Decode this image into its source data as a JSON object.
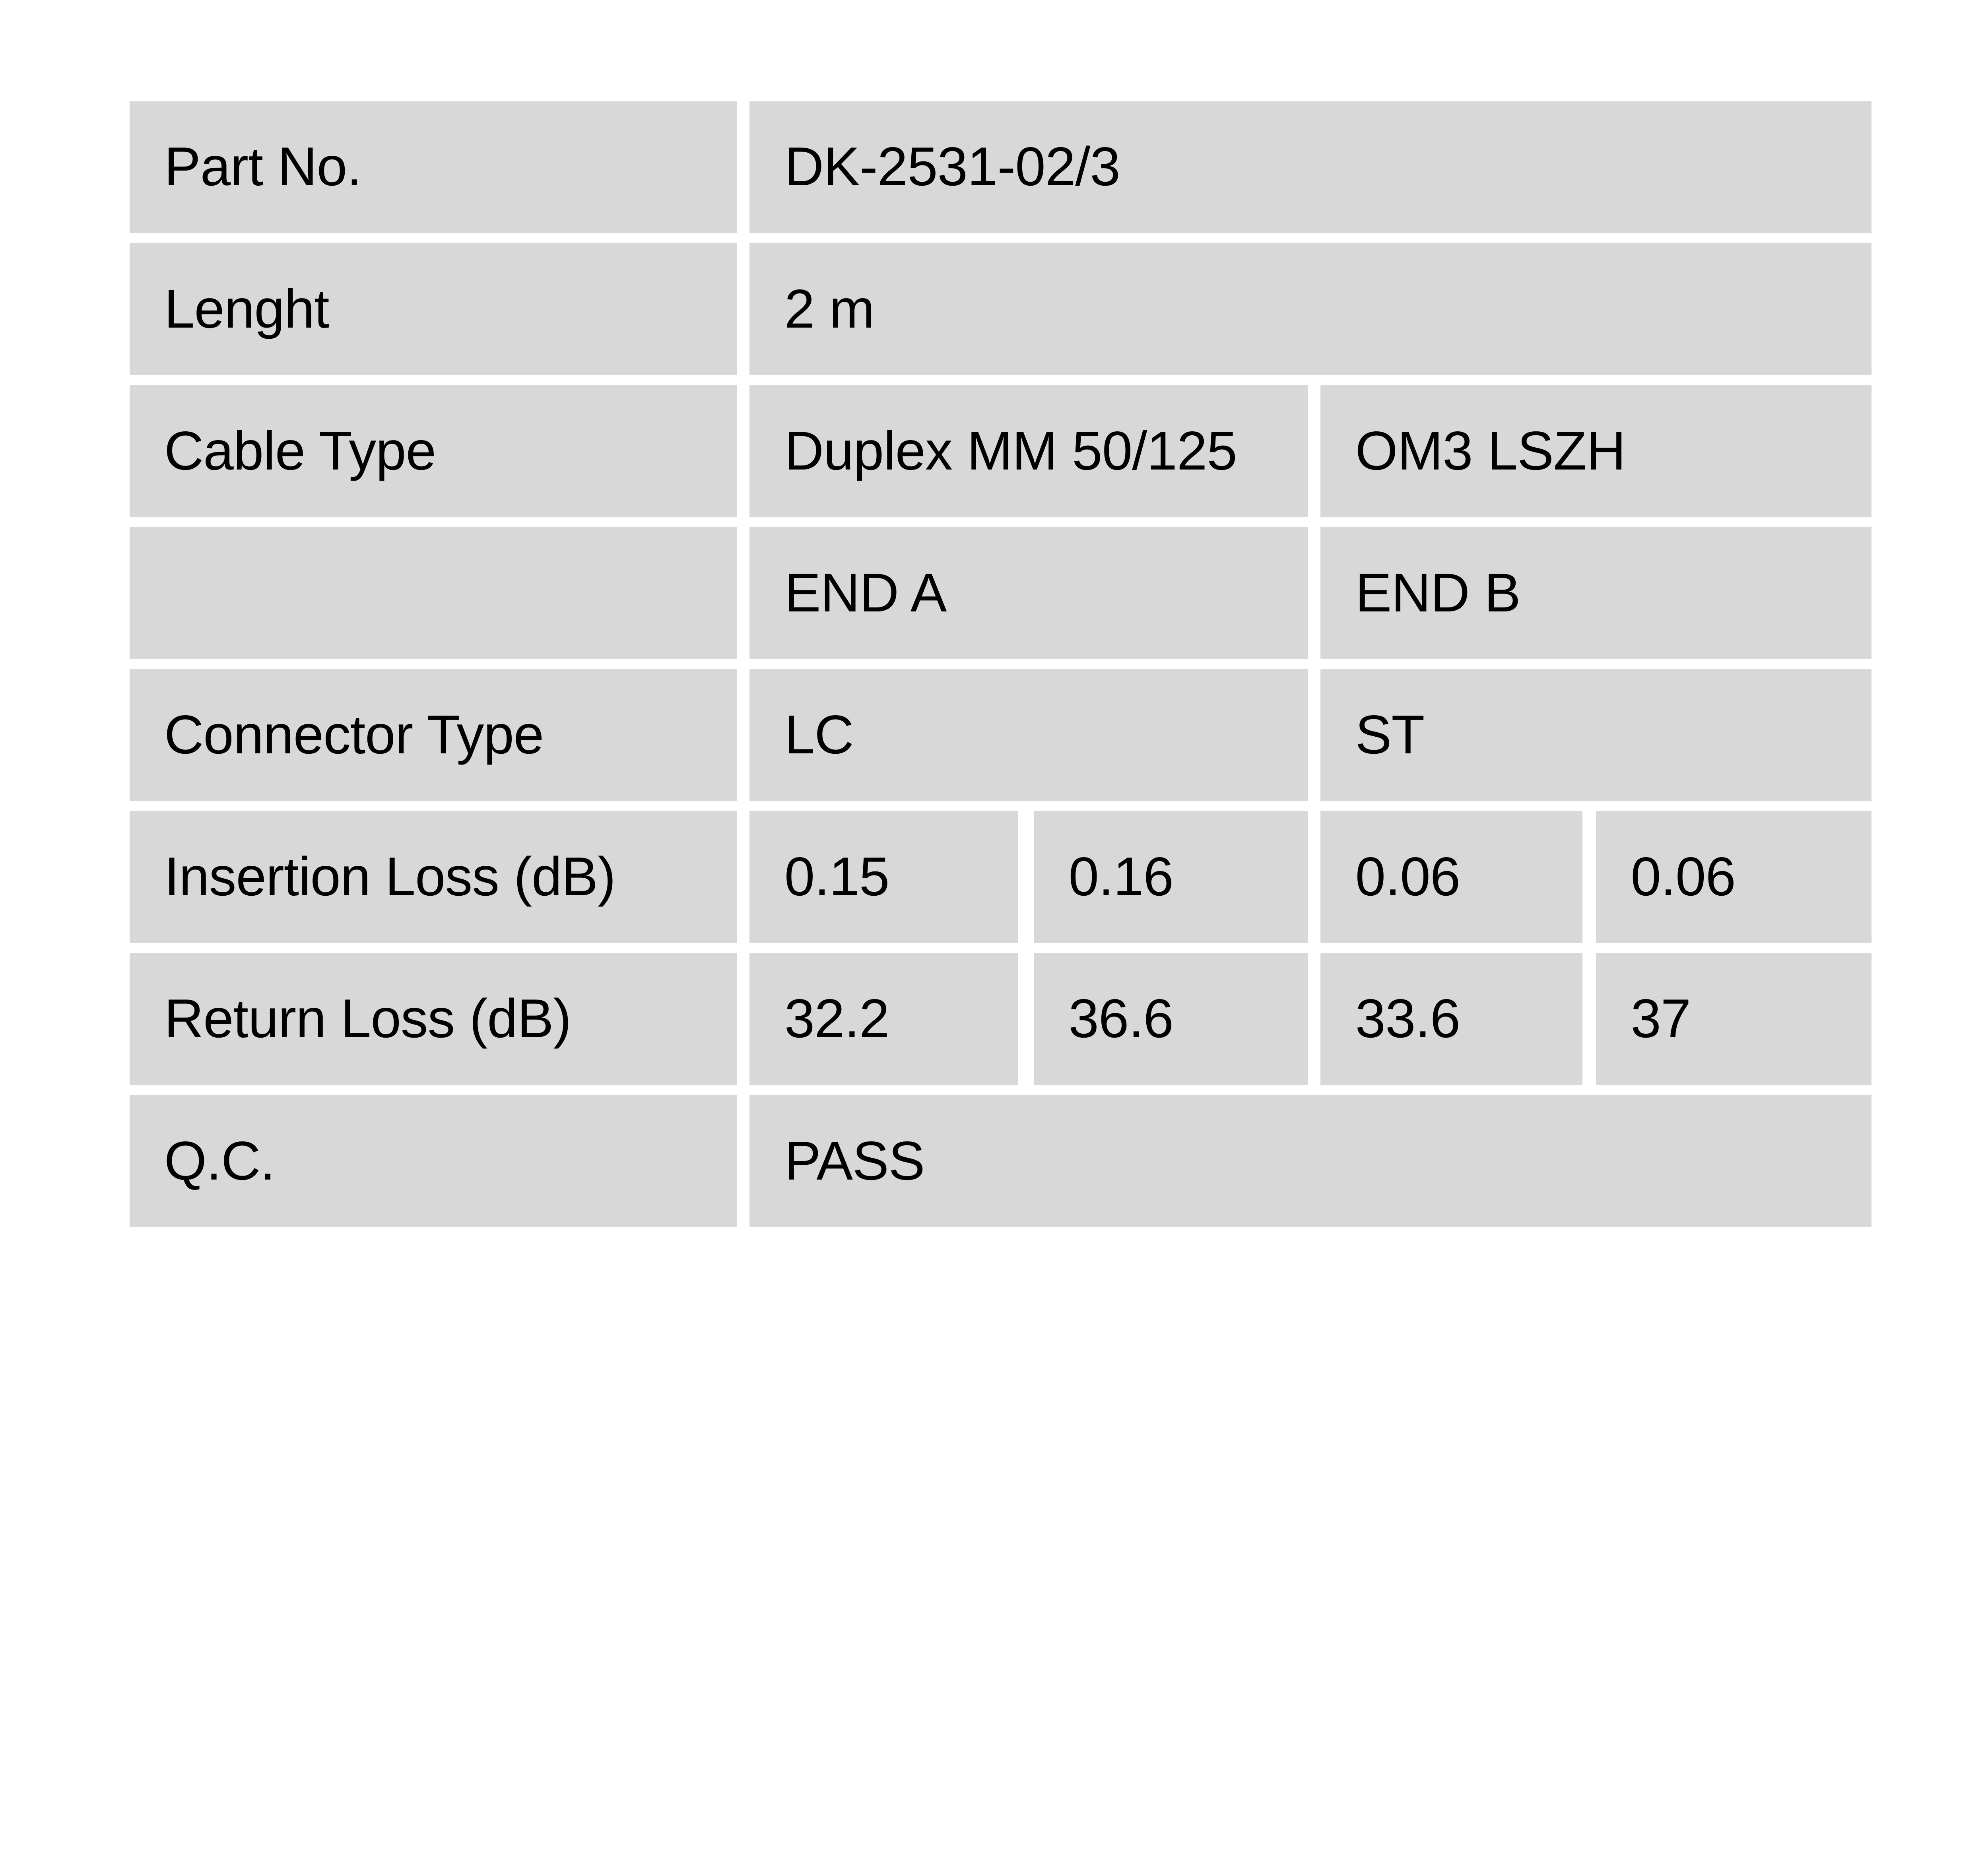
{
  "colors": {
    "page_background": "#ffffff",
    "cell_background": "#d8d8d8",
    "text": "#000000"
  },
  "table": {
    "part_no": {
      "label": "Part No.",
      "value": "DK-2531-02/3"
    },
    "length": {
      "label": "Lenght",
      "value": "2 m"
    },
    "cable_type": {
      "label": "Cable Type",
      "value_a": "Duplex MM 50/125",
      "value_b": "OM3 LSZH"
    },
    "ends": {
      "label": "",
      "end_a": "END A",
      "end_b": "END B"
    },
    "connector_type": {
      "label": "Connector Type",
      "end_a": "LC",
      "end_b": "ST"
    },
    "insertion_loss": {
      "label": "Insertion Loss (dB)",
      "values": [
        "0.15",
        "0.16",
        "0.06",
        "0.06"
      ]
    },
    "return_loss": {
      "label": "Return Loss (dB)",
      "values": [
        "32.2",
        "36.6",
        "33.6",
        "37"
      ]
    },
    "qc": {
      "label": "Q.C.",
      "value": "PASS"
    }
  }
}
